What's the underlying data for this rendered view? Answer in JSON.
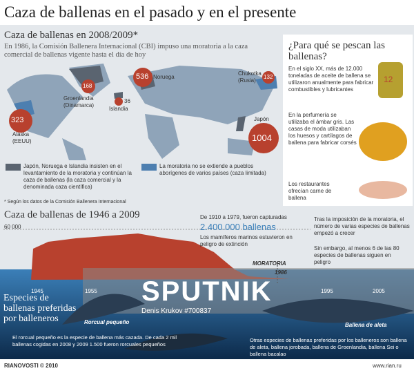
{
  "header": {
    "title": "Caza de ballenas en el pasado y en el presente"
  },
  "section1": {
    "title": "Caza de ballenas en 2008/2009*",
    "intro": "En 1986, la Comisión Ballenera Internacional (CBI) impuso una moratoria a la caza comercial de ballenas vigente hasta el día de hoy",
    "markers": [
      {
        "value": "323",
        "label": "Alaska (EEUU)"
      },
      {
        "value": "168",
        "label": "Groenlandia (Dinamarca)"
      },
      {
        "value": "536",
        "label": "Noruega"
      },
      {
        "value": "36",
        "label": "Islandia"
      },
      {
        "value": "132",
        "label": "Chukotka (Rusia)"
      },
      {
        "value": "1004",
        "label": "Japón"
      }
    ],
    "legend": [
      "Japón, Noruega e Islandia insisten en el levantamiento de la moratoria y continúan la caza de ballenas (la caza comercial y la denominada caza científica)",
      "La moratoria no se extiende a pueblos aborígenes de varios países (caza limitada)"
    ],
    "footnote": "* Según los datos de la Comisión Ballenera Internacional"
  },
  "sidebar": {
    "title": "¿Para qué se pescan las ballenas?",
    "barrel": "12",
    "items": [
      "En el siglo XX, más de 12.000 toneladas de aceite de ballena se utilizaron anualmente para fabricar combustibles y lubricantes",
      "En la perfumería se utilizaba el ámbar gris. Las casas de moda utilizaban los huesos y cartílagos de ballena para fabricar corsés",
      "Los restaurantes ofrecían carne de ballena"
    ]
  },
  "section2": {
    "title": "Caza de ballenas de 1946 a 2009",
    "y_label": "60 000",
    "x_labels": [
      "1945",
      "1955",
      "1995",
      "2005"
    ],
    "moratoria": "MORATORIA",
    "moratoria_year": "1986",
    "note1": {
      "intro": "De 1910 a 1979, fueron capturadas",
      "highlight": "2.400.000 ballenas",
      "text": "Los mamíferos marinos estuvieron en peligro de extinción"
    },
    "note2": [
      "Tras la imposición de la moratoria, el número de varias especies de ballenas empezó a crecer",
      "Sin embargo, al menos 6 de las 80 especies de ballenas siguen en peligro"
    ]
  },
  "species": {
    "title": "Especies de ballenas preferidas por balleneros",
    "whale1": "Rorcual pequeño",
    "whale2": "Ballena de aleta",
    "text1": "El rorcual pequeño es la especie de ballena más cazada. De cada 2 mil ballenas cogidas en 2008 y 2009 1.500 fueron rorcuales pequeños",
    "text2": "Otras especies de ballenas preferidas por los balleneros son ballena de aleta, ballena jorobada, ballena de Groenlandia, ballena Sei o ballena bacalao"
  },
  "watermark": {
    "brand": "SPUTNIK",
    "credit": "Denis Krukov #700837"
  },
  "footer": {
    "left": "RIANOVOSTI © 2010",
    "right": "www.rian.ru"
  }
}
